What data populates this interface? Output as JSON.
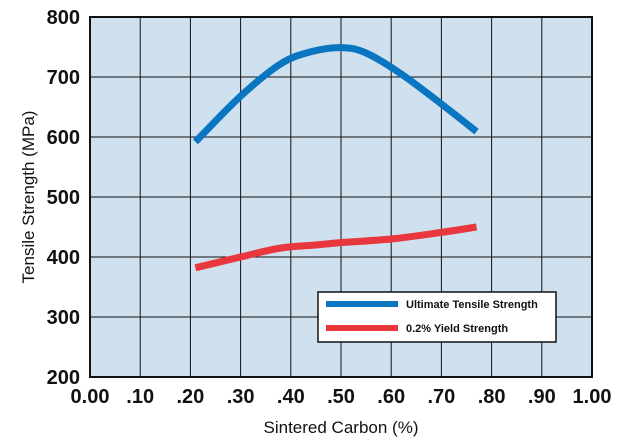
{
  "chart_data": {
    "type": "line",
    "xlabel": "Sintered Carbon (%)",
    "ylabel": "Tensile Strength (MPa)",
    "xlim": [
      0,
      1.0
    ],
    "ylim": [
      200,
      800
    ],
    "x_tick_labels": [
      "0.00",
      ".10",
      ".20",
      ".30",
      ".40",
      ".50",
      ".60",
      ".70",
      ".80",
      ".90",
      "1.00"
    ],
    "y_tick_labels": [
      "200",
      "300",
      "400",
      "500",
      "600",
      "700",
      "800"
    ],
    "grid": true,
    "legend_position": "bottom-right",
    "plot_background": "#cfe0ee",
    "series": [
      {
        "name": "Ultimate Tensile Strength",
        "color": "#0a76c2",
        "x": [
          0.21,
          0.3,
          0.38,
          0.44,
          0.5,
          0.55,
          0.62,
          0.7,
          0.77
        ],
        "y": [
          592,
          668,
          722,
          742,
          749,
          740,
          705,
          655,
          609
        ]
      },
      {
        "name": "0.2% Yield Strength",
        "color": "#e8383e",
        "x": [
          0.21,
          0.3,
          0.38,
          0.45,
          0.5,
          0.6,
          0.7,
          0.77
        ],
        "y": [
          382,
          400,
          415,
          420,
          424,
          430,
          441,
          450
        ]
      }
    ]
  }
}
